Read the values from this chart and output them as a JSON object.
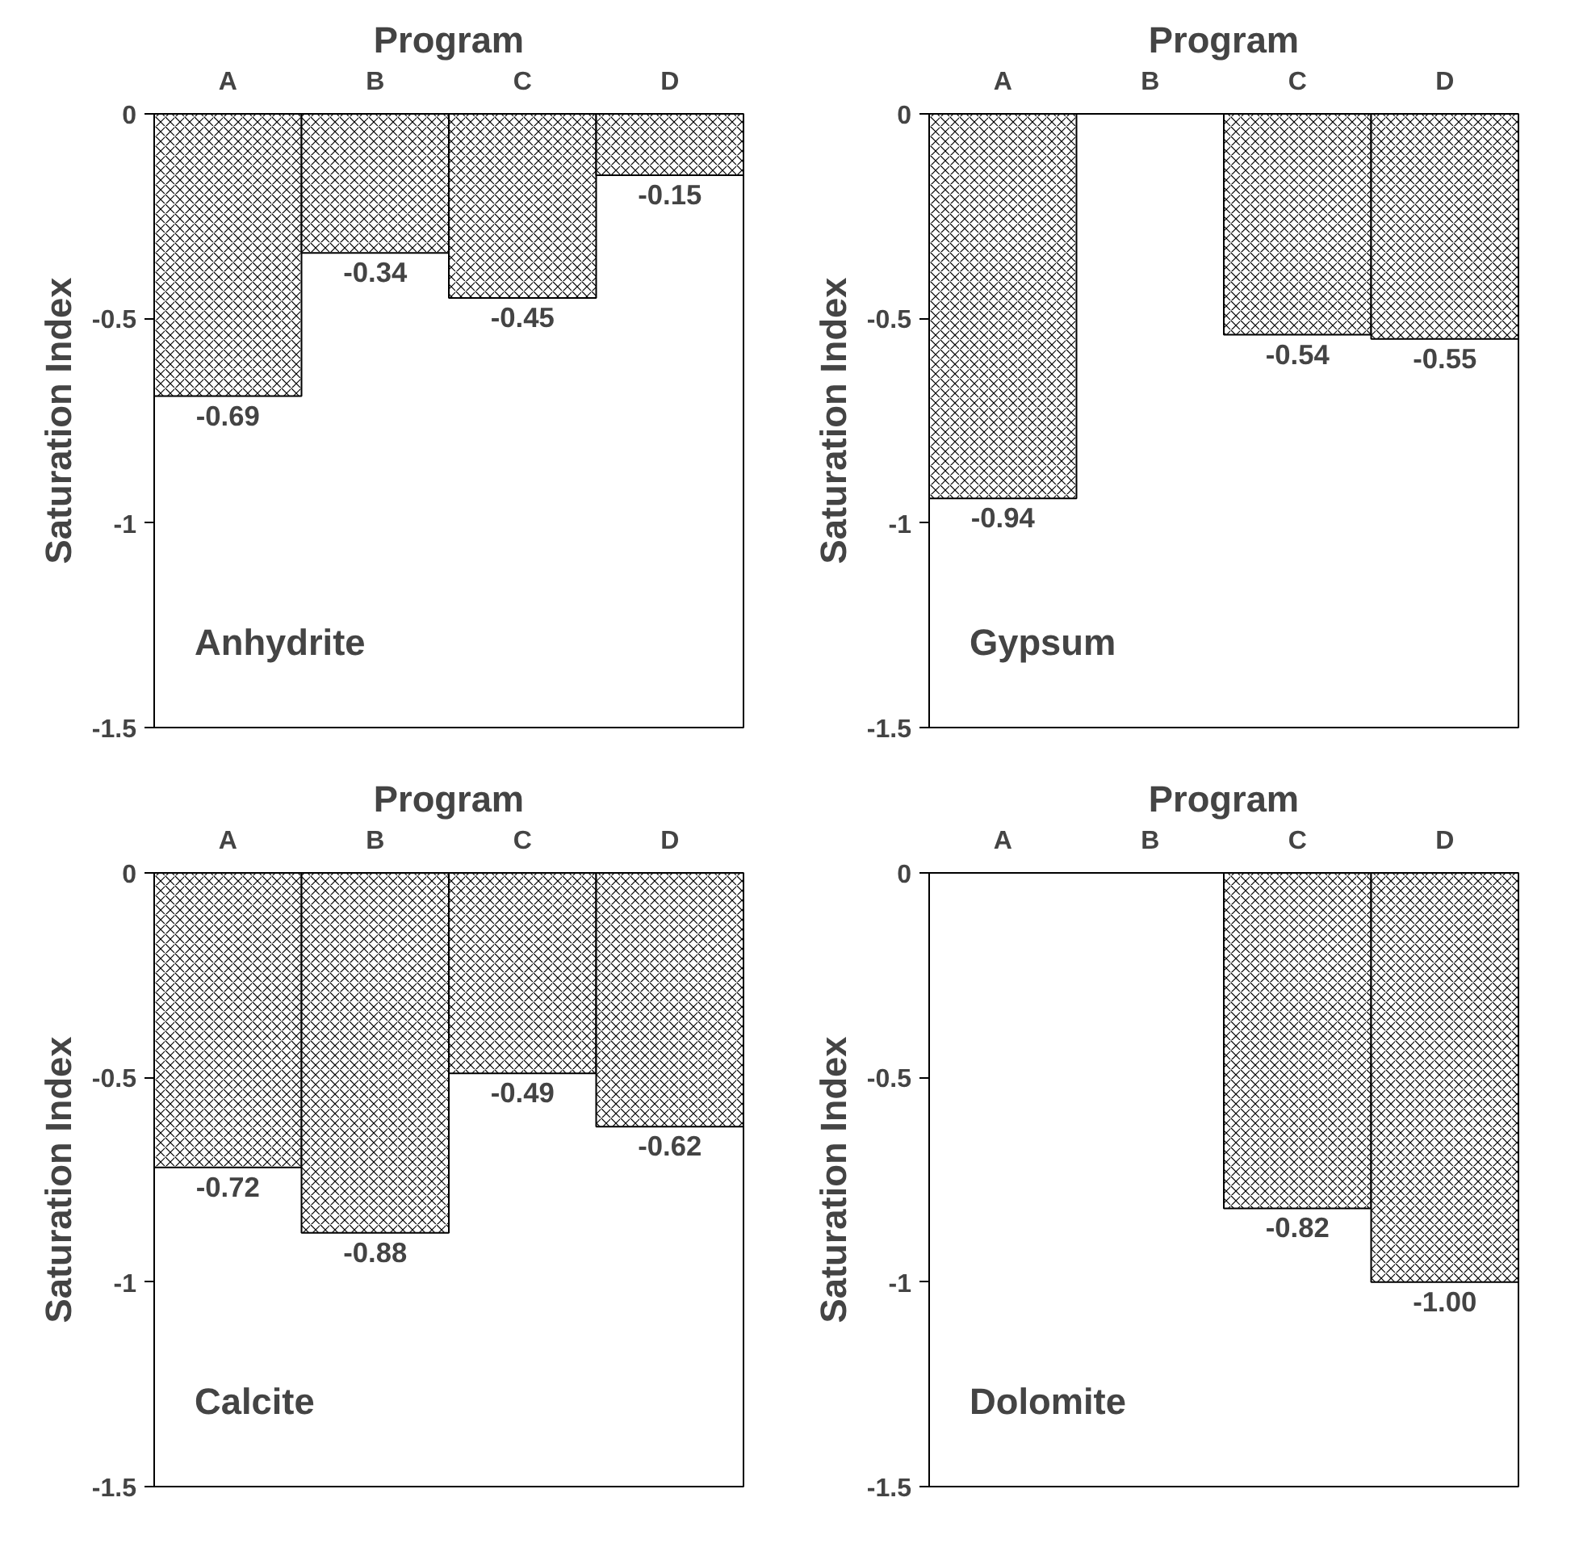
{
  "chart_data": [
    {
      "type": "bar",
      "xlabel": "Program",
      "ylabel": "Saturation Index",
      "categories": [
        "A",
        "B",
        "C",
        "D"
      ],
      "values": [
        -0.69,
        -0.34,
        -0.45,
        -0.15
      ],
      "value_labels": [
        "-0.69",
        "-0.34",
        "-0.45",
        "-0.15"
      ],
      "color": "#000000",
      "ylim": [
        -1.5,
        0
      ],
      "yticks": [
        0,
        -0.5,
        -1,
        -1.5
      ],
      "grid": false,
      "annotations": [
        "Anhydrite"
      ]
    },
    {
      "type": "bar",
      "xlabel": "Program",
      "ylabel": "Saturation Index",
      "categories": [
        "A",
        "B",
        "C",
        "D"
      ],
      "values": [
        -0.94,
        null,
        -0.54,
        -0.55
      ],
      "value_labels": [
        "-0.94",
        null,
        "-0.54",
        "-0.55"
      ],
      "color": "#000000",
      "ylim": [
        -1.5,
        0
      ],
      "yticks": [
        0,
        -0.5,
        -1,
        -1.5
      ],
      "grid": false,
      "annotations": [
        "Gypsum"
      ]
    },
    {
      "type": "bar",
      "xlabel": "Program",
      "ylabel": "Saturation Index",
      "categories": [
        "A",
        "B",
        "C",
        "D"
      ],
      "values": [
        -0.72,
        -0.88,
        -0.49,
        -0.62
      ],
      "value_labels": [
        "-0.72",
        "-0.88",
        "-0.49",
        "-0.62"
      ],
      "color": "#000000",
      "ylim": [
        -1.5,
        0
      ],
      "yticks": [
        0,
        -0.5,
        -1,
        -1.5
      ],
      "grid": false,
      "annotations": [
        "Calcite"
      ]
    },
    {
      "type": "bar",
      "xlabel": "Program",
      "ylabel": "Saturation Index",
      "categories": [
        "A",
        "B",
        "C",
        "D"
      ],
      "values": [
        null,
        null,
        -0.82,
        -1.0
      ],
      "value_labels": [
        null,
        null,
        "-0.82",
        "-1.00"
      ],
      "color": "#000000",
      "ylim": [
        -1.5,
        0
      ],
      "yticks": [
        0,
        -0.5,
        -1,
        -1.5
      ],
      "grid": false,
      "annotations": [
        "Dolomite"
      ]
    }
  ]
}
